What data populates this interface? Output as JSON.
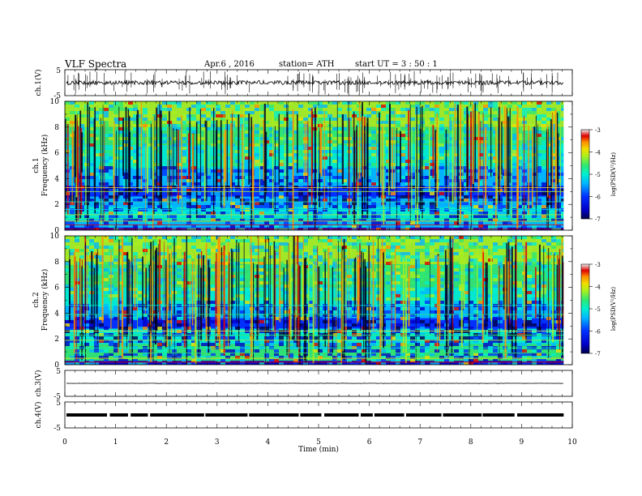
{
  "header": {
    "title": "VLF  Spectra",
    "date": "Apr.6  , 2016",
    "station": "station= ATH",
    "start": "start  UT =   3  : 50 : 1"
  },
  "chart_data": {
    "type": "heatmap",
    "title": "VLF  Spectra",
    "xlabel": "Time  (min)",
    "xlim": [
      0,
      10
    ],
    "x_ticks": [
      "0",
      "1",
      "2",
      "3",
      "4",
      "5",
      "6",
      "7",
      "8",
      "9",
      "10"
    ],
    "panels": [
      {
        "name": "ch1_waveform",
        "type": "line",
        "ylabel": "ch.1(V)",
        "ylim": [
          -5,
          5
        ],
        "y_ticks": [
          "5",
          "-5"
        ]
      },
      {
        "name": "ch1_spectrogram",
        "type": "heatmap",
        "ylabel": "ch.1\nFrequency  (kHz)",
        "ylim": [
          0,
          10
        ],
        "y_ticks": [
          "0",
          "2",
          "4",
          "6",
          "8",
          "10"
        ],
        "colorbar": {
          "label": "log(PSD(V²/Hz)",
          "range": [
            -7,
            -3
          ],
          "ticks": [
            "-3",
            "-4",
            "-5",
            "-6",
            "-7"
          ]
        }
      },
      {
        "name": "ch2_spectrogram",
        "type": "heatmap",
        "ylabel": "ch.2\nFrequency  (kHz)",
        "ylim": [
          0,
          10
        ],
        "y_ticks": [
          "0",
          "2",
          "4",
          "6",
          "8",
          "10"
        ],
        "colorbar": {
          "label": "log(PSD(V²/Hz)",
          "range": [
            -7,
            -3
          ],
          "ticks": [
            "-3",
            "-4",
            "-5",
            "-6",
            "-7"
          ]
        }
      },
      {
        "name": "ch3_waveform",
        "type": "line",
        "ylabel": "ch.3(V)",
        "ylim": [
          -5,
          5
        ],
        "y_ticks": [
          "5",
          "-5"
        ]
      },
      {
        "name": "ch4_waveform",
        "type": "line",
        "ylabel": "ch.4(V)",
        "ylim": [
          -5,
          5
        ],
        "y_ticks": [
          "5",
          "-5"
        ]
      }
    ],
    "colormap": [
      "#00004a",
      "#0000c8",
      "#0030ff",
      "#00b8ff",
      "#00f0d0",
      "#30e870",
      "#a8f020",
      "#f0e000",
      "#ff9000",
      "#e00000",
      "#f0f0f0"
    ]
  }
}
